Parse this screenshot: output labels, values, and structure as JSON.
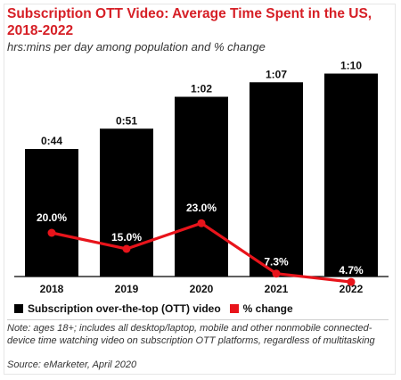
{
  "header": {
    "title": "Subscription OTT Video: Average Time Spent in the US, 2018-2022",
    "subtitle": "hrs:mins per day among population and % change"
  },
  "legend": {
    "items": [
      {
        "label": "Subscription over-the-top (OTT) video",
        "color": "#000000"
      },
      {
        "label": "% change",
        "color": "#e8141b"
      }
    ]
  },
  "footer": {
    "note": "Note: ages 18+; includes all desktop/laptop, mobile and other nonmobile connected-device time watching video on subscription OTT platforms, regardless of multitasking",
    "source": "Source: eMarketer, April 2020"
  },
  "chart_data": {
    "type": "bar",
    "categories": [
      "2018",
      "2019",
      "2020",
      "2021",
      "2022"
    ],
    "series": [
      {
        "name": "Subscription over-the-top (OTT) video",
        "type": "bar",
        "values": [
          44,
          51,
          62,
          67,
          70
        ],
        "labels": [
          "0:44",
          "0:51",
          "1:02",
          "1:07",
          "1:10"
        ],
        "color": "#000000"
      },
      {
        "name": "% change",
        "type": "line",
        "values": [
          20.0,
          15.0,
          23.0,
          7.3,
          4.7
        ],
        "labels": [
          "20.0%",
          "15.0%",
          "23.0%",
          "7.3%",
          "4.7%"
        ],
        "color": "#e8141b"
      }
    ],
    "units": {
      "bars": "minutes per day",
      "line": "percent"
    },
    "bar_ylim": [
      0,
      80
    ],
    "line_ylim": [
      0,
      40
    ],
    "grid": false
  }
}
